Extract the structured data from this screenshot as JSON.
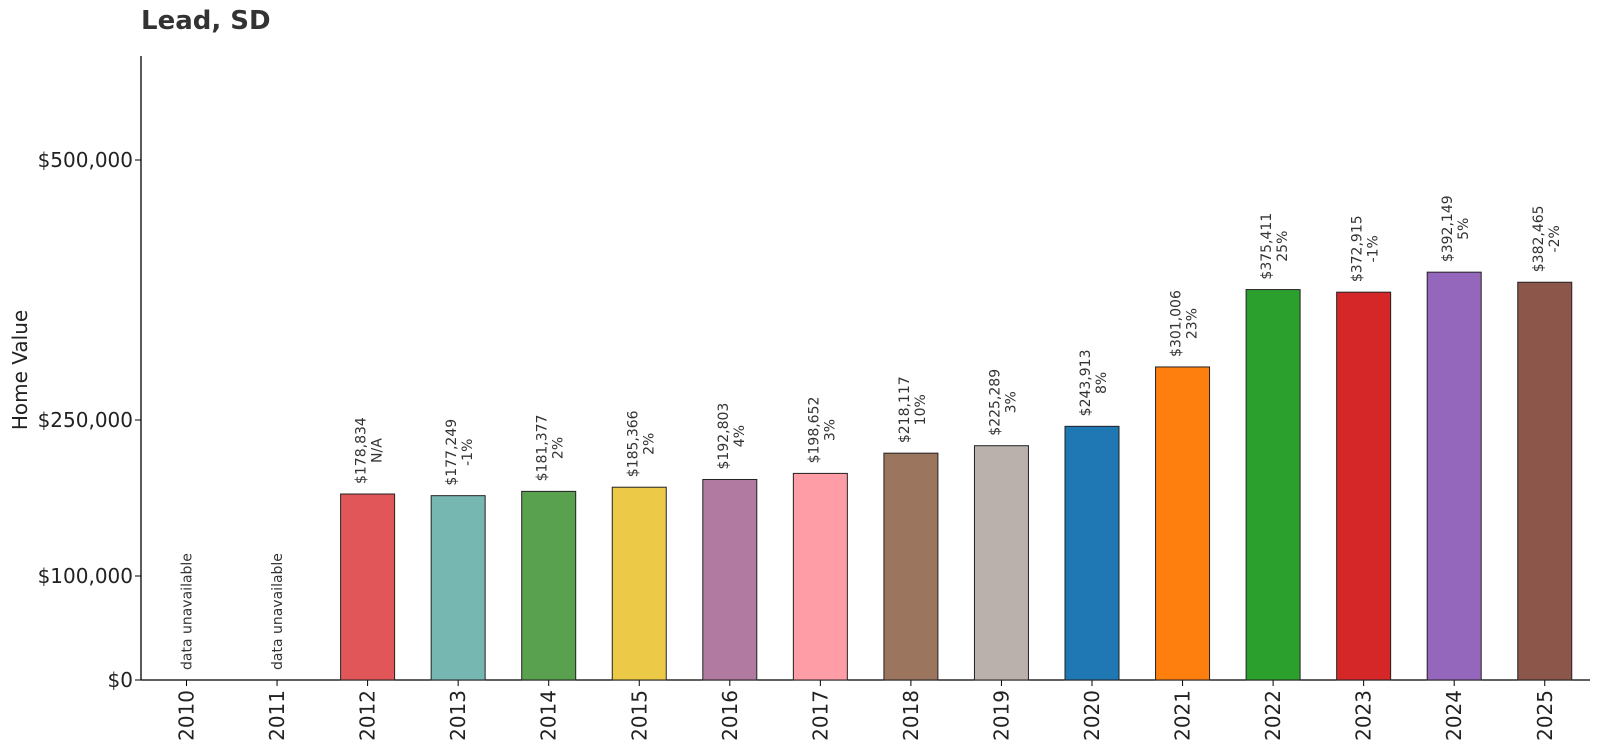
{
  "title": "Lead, SD",
  "chart_data": {
    "type": "bar",
    "title": "Lead, SD",
    "xlabel": "",
    "ylabel": "Home Value",
    "ylim": [
      0,
      600000
    ],
    "yticks": [
      0,
      100000,
      250000,
      500000
    ],
    "ytick_labels": [
      "$0",
      "$100,000",
      "$250,000",
      "$500,000"
    ],
    "categories": [
      "2010",
      "2011",
      "2012",
      "2013",
      "2014",
      "2015",
      "2016",
      "2017",
      "2018",
      "2019",
      "2020",
      "2021",
      "2022",
      "2023",
      "2024",
      "2025"
    ],
    "values": [
      null,
      null,
      178834,
      177249,
      181377,
      185366,
      192803,
      198652,
      218117,
      225289,
      243913,
      301006,
      375411,
      372915,
      392149,
      382465
    ],
    "value_labels": [
      "",
      "",
      "$178,834",
      "$177,249",
      "$181,377",
      "$185,366",
      "$192,803",
      "$198,652",
      "$218,117",
      "$225,289",
      "$243,913",
      "$301,006",
      "$375,411",
      "$372,915",
      "$392,149",
      "$382,465"
    ],
    "change_labels": [
      "",
      "",
      "N/A",
      "-1%",
      "2%",
      "2%",
      "4%",
      "3%",
      "10%",
      "3%",
      "8%",
      "23%",
      "25%",
      "-1%",
      "5%",
      "-2%"
    ],
    "missing_label": "data unavailable",
    "colors": [
      "#e15759",
      "#e15759",
      "#e15759",
      "#76b7b2",
      "#59a14f",
      "#edc948",
      "#b07aa1",
      "#ff9da7",
      "#9c755f",
      "#bab0ac",
      "#1f77b4",
      "#ff7f0e",
      "#2ca02c",
      "#d62728",
      "#9467bd",
      "#8c564b"
    ],
    "grid": false,
    "legend": "none"
  }
}
